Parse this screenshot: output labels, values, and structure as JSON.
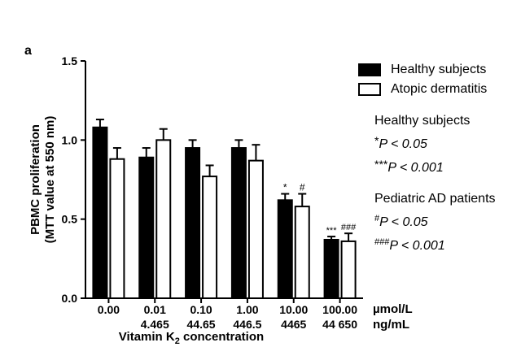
{
  "chart_data": {
    "type": "bar",
    "panel_label": "a",
    "categories": [
      {
        "umol": "0.00",
        "ngml": ""
      },
      {
        "umol": "0.01",
        "ngml": "4.465"
      },
      {
        "umol": "0.10",
        "ngml": "44.65"
      },
      {
        "umol": "1.00",
        "ngml": "446.5"
      },
      {
        "umol": "10.00",
        "ngml": "4465"
      },
      {
        "umol": "100.00",
        "ngml": "44 650"
      }
    ],
    "series": [
      {
        "name": "Healthy subjects",
        "fill": "#000000",
        "values": [
          1.08,
          0.89,
          0.95,
          0.95,
          0.62,
          0.37
        ],
        "errors": [
          0.05,
          0.06,
          0.05,
          0.05,
          0.04,
          0.02
        ]
      },
      {
        "name": "Atopic dermatitis",
        "fill": "#ffffff",
        "values": [
          0.88,
          1.0,
          0.77,
          0.87,
          0.58,
          0.36
        ],
        "errors": [
          0.07,
          0.07,
          0.07,
          0.1,
          0.08,
          0.05
        ]
      }
    ],
    "significance": [
      {
        "category": 4,
        "series": 0,
        "label": "*"
      },
      {
        "category": 4,
        "series": 1,
        "label": "#"
      },
      {
        "category": 5,
        "series": 0,
        "label": "***"
      },
      {
        "category": 5,
        "series": 1,
        "label": "###"
      }
    ],
    "ylabel_line1": "PBMC proliferation",
    "ylabel_line2": "(MTT value at 550 nm)",
    "xlabel_main": "Vitamin K",
    "xlabel_sub": "2",
    "xlabel_end": " concentration",
    "yticks": [
      "0.0",
      "0.5",
      "1.0",
      "1.5"
    ],
    "ylim": [
      0,
      1.5
    ],
    "x_units": [
      "µmol/L",
      "ng/mL"
    ]
  },
  "stats": {
    "healthy_title": "Healthy subjects",
    "healthy_star1": "*",
    "healthy_p1": "P < 0.05",
    "healthy_star3": "***",
    "healthy_p3": "P < 0.001",
    "ad_title": "Pediatric AD patients",
    "ad_hash1": "#",
    "ad_p1": "P < 0.05",
    "ad_hash3": "###",
    "ad_p3": "P < 0.001"
  }
}
